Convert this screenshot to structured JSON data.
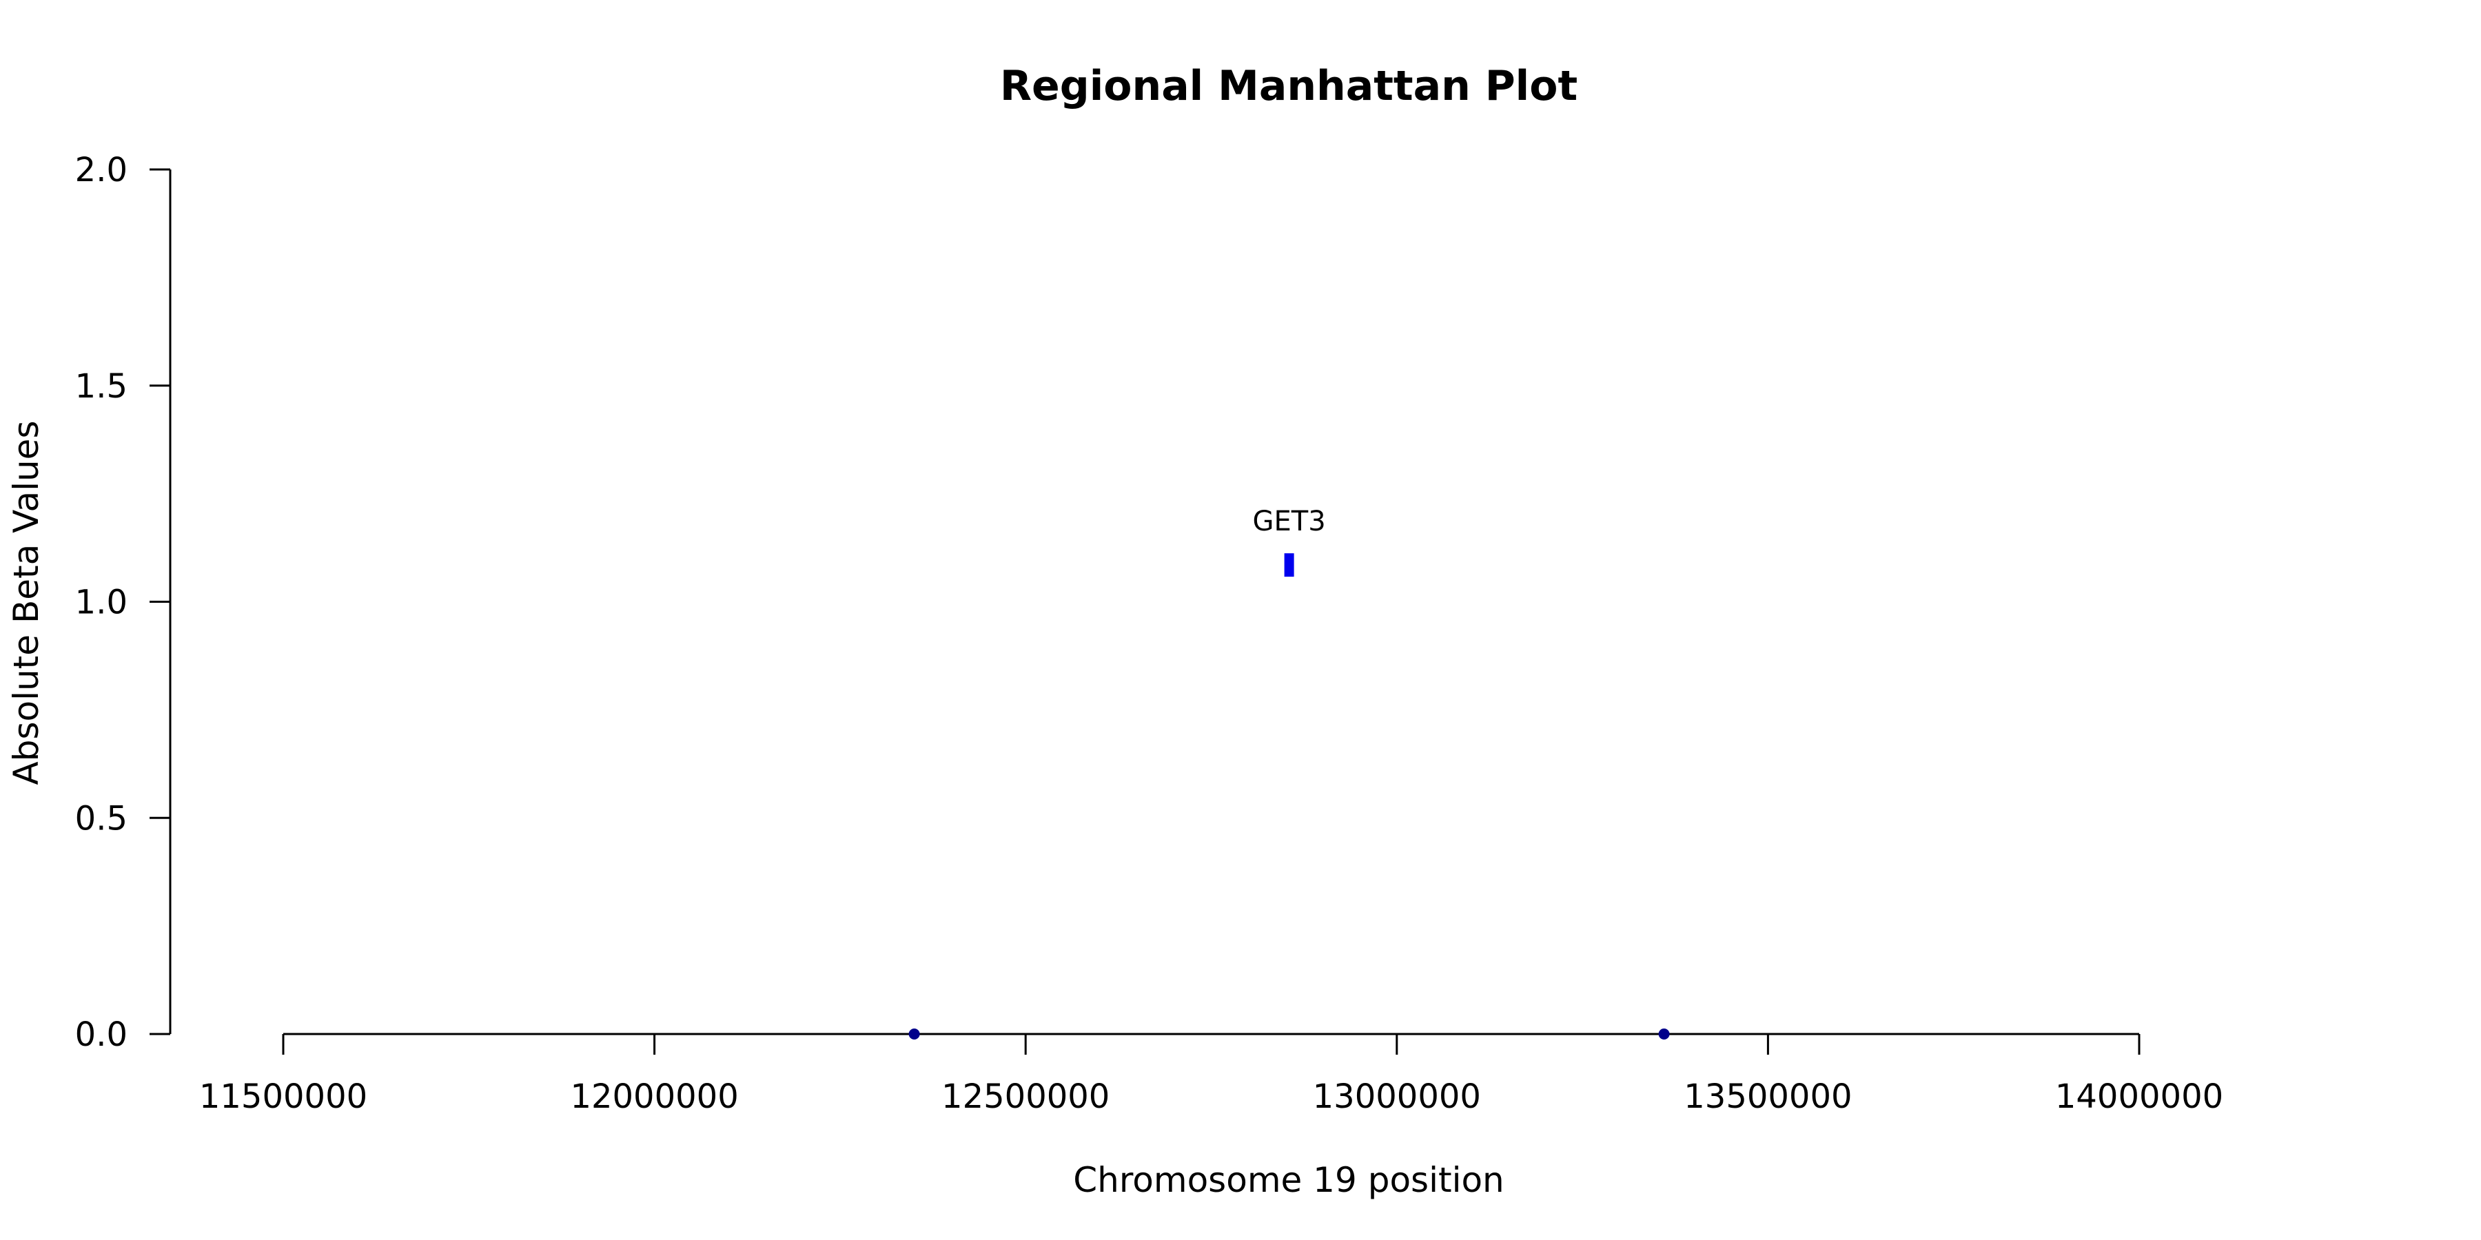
{
  "chart_data": {
    "type": "scatter",
    "title": "Regional Manhattan Plot",
    "xlabel": "Chromosome 19 position",
    "ylabel": "Absolute Beta Values",
    "xlim": [
      11500000,
      14000000
    ],
    "ylim": [
      0,
      2
    ],
    "xticks": [
      11500000,
      12000000,
      12500000,
      13000000,
      13500000,
      14000000
    ],
    "yticks": [
      "0.0",
      "0.5",
      "1.0",
      "1.5",
      "2.0"
    ],
    "grid": false,
    "points": [
      {
        "x": 12350000,
        "y": 0.0,
        "color": "#00008b",
        "marker": "circle"
      },
      {
        "x": 12855000,
        "y": 1.085,
        "color": "#0000ee",
        "marker": "bar",
        "label": "GET3"
      },
      {
        "x": 13360000,
        "y": 0.0,
        "color": "#00008b",
        "marker": "circle"
      }
    ]
  }
}
